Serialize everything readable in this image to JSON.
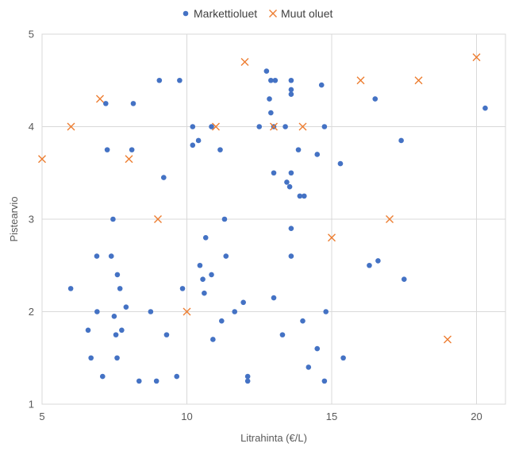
{
  "chart_data": {
    "type": "scatter",
    "xlabel": "Litrahinta (€/L)",
    "ylabel": "Pistearvio",
    "xlim": [
      5,
      21
    ],
    "ylim": [
      1,
      5
    ],
    "x_ticks": [
      5,
      10,
      15,
      20
    ],
    "y_ticks": [
      1,
      2,
      3,
      4,
      5
    ],
    "grid": true,
    "legend_position": "top",
    "series": [
      {
        "name": "Markettioluet",
        "marker": "circle",
        "color": "#4472C4",
        "points": [
          [
            5.99,
            2.25
          ],
          [
            6.59,
            1.8
          ],
          [
            6.69,
            1.5
          ],
          [
            6.89,
            2.6
          ],
          [
            6.9,
            2.0
          ],
          [
            7.09,
            1.3
          ],
          [
            7.2,
            4.25
          ],
          [
            7.25,
            3.75
          ],
          [
            7.39,
            2.6
          ],
          [
            7.45,
            3.0
          ],
          [
            7.49,
            1.95
          ],
          [
            7.55,
            1.75
          ],
          [
            7.59,
            1.5
          ],
          [
            7.6,
            2.4
          ],
          [
            7.69,
            2.25
          ],
          [
            7.75,
            1.8
          ],
          [
            7.9,
            2.05
          ],
          [
            8.1,
            3.75
          ],
          [
            8.15,
            4.25
          ],
          [
            8.35,
            1.25
          ],
          [
            8.75,
            2.0
          ],
          [
            8.95,
            1.25
          ],
          [
            9.05,
            4.5
          ],
          [
            9.2,
            3.45
          ],
          [
            9.3,
            1.75
          ],
          [
            9.65,
            1.3
          ],
          [
            9.75,
            4.5
          ],
          [
            9.85,
            2.25
          ],
          [
            10.2,
            4.0
          ],
          [
            10.2,
            3.8
          ],
          [
            10.4,
            3.85
          ],
          [
            10.45,
            2.5
          ],
          [
            10.55,
            2.35
          ],
          [
            10.6,
            2.2
          ],
          [
            10.65,
            2.8
          ],
          [
            10.85,
            2.4
          ],
          [
            10.85,
            4.0
          ],
          [
            10.9,
            1.7
          ],
          [
            11.15,
            3.75
          ],
          [
            11.2,
            1.9
          ],
          [
            11.3,
            3.0
          ],
          [
            11.35,
            2.6
          ],
          [
            11.65,
            2.0
          ],
          [
            11.95,
            2.1
          ],
          [
            12.1,
            1.3
          ],
          [
            12.1,
            1.25
          ],
          [
            12.5,
            4.0
          ],
          [
            12.75,
            4.6
          ],
          [
            12.85,
            4.3
          ],
          [
            12.9,
            4.5
          ],
          [
            12.9,
            4.15
          ],
          [
            13.0,
            3.5
          ],
          [
            13.0,
            4.0
          ],
          [
            13.0,
            2.15
          ],
          [
            13.05,
            4.5
          ],
          [
            13.3,
            1.75
          ],
          [
            13.4,
            4.0
          ],
          [
            13.45,
            3.4
          ],
          [
            13.55,
            3.35
          ],
          [
            13.6,
            4.5
          ],
          [
            13.6,
            4.4
          ],
          [
            13.6,
            4.35
          ],
          [
            13.6,
            3.5
          ],
          [
            13.6,
            2.9
          ],
          [
            13.6,
            2.6
          ],
          [
            13.85,
            3.75
          ],
          [
            13.9,
            3.25
          ],
          [
            14.0,
            1.9
          ],
          [
            14.05,
            3.25
          ],
          [
            14.2,
            1.4
          ],
          [
            14.5,
            3.7
          ],
          [
            14.5,
            1.6
          ],
          [
            14.65,
            4.45
          ],
          [
            14.75,
            4.0
          ],
          [
            14.75,
            1.25
          ],
          [
            14.8,
            2.0
          ],
          [
            15.3,
            3.6
          ],
          [
            15.4,
            1.5
          ],
          [
            16.3,
            2.5
          ],
          [
            16.5,
            4.3
          ],
          [
            16.6,
            2.55
          ],
          [
            17.4,
            3.85
          ],
          [
            17.5,
            2.35
          ],
          [
            20.3,
            4.2
          ]
        ]
      },
      {
        "name": "Muut oluet",
        "marker": "x",
        "color": "#ED7D31",
        "points": [
          [
            5.0,
            3.65
          ],
          [
            6.0,
            4.0
          ],
          [
            7.0,
            4.3
          ],
          [
            8.0,
            3.65
          ],
          [
            9.0,
            3.0
          ],
          [
            10.0,
            2.0
          ],
          [
            11.0,
            4.0
          ],
          [
            12.0,
            4.7
          ],
          [
            13.0,
            4.0
          ],
          [
            14.0,
            4.0
          ],
          [
            15.0,
            2.8
          ],
          [
            16.0,
            4.5
          ],
          [
            17.0,
            3.0
          ],
          [
            18.0,
            4.5
          ],
          [
            19.0,
            1.7
          ],
          [
            20.0,
            4.75
          ]
        ]
      }
    ]
  }
}
